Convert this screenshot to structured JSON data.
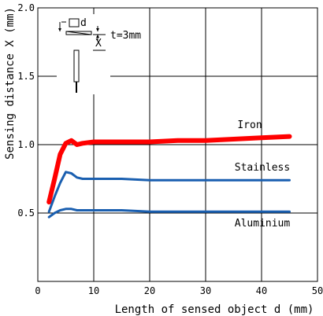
{
  "chart_data": {
    "type": "line",
    "xlabel": "Length of sensed object d (mm)",
    "ylabel": "Sensing distance X (mm)",
    "xlim": [
      0,
      50
    ],
    "ylim": [
      0,
      2.0
    ],
    "xticks": [
      "0",
      "10",
      "20",
      "30",
      "40",
      "50"
    ],
    "yticks": [
      "0.5",
      "1.0",
      "1.5",
      "2.0"
    ],
    "ytick_values": [
      0.5,
      1.0,
      1.5,
      2.0
    ],
    "grid": true,
    "series": [
      {
        "name": "Iron",
        "color": "#ff0000",
        "x": [
          2,
          3,
          4,
          5,
          6,
          7,
          8,
          10,
          15,
          20,
          25,
          30,
          35,
          40,
          45
        ],
        "y": [
          0.58,
          0.75,
          0.93,
          1.01,
          1.03,
          1.0,
          1.01,
          1.02,
          1.02,
          1.02,
          1.03,
          1.03,
          1.04,
          1.05,
          1.06
        ]
      },
      {
        "name": "Stainless",
        "color": "#1a5fb0",
        "x": [
          2,
          3,
          4,
          5,
          6,
          7,
          8,
          10,
          15,
          20,
          25,
          30,
          35,
          40,
          45
        ],
        "y": [
          0.51,
          0.62,
          0.72,
          0.8,
          0.79,
          0.76,
          0.75,
          0.75,
          0.75,
          0.74,
          0.74,
          0.74,
          0.74,
          0.74,
          0.74
        ]
      },
      {
        "name": "Aluminium",
        "color": "#1a5fb0",
        "x": [
          2,
          3,
          4,
          5,
          6,
          7,
          8,
          10,
          15,
          20,
          25,
          30,
          35,
          40,
          45
        ],
        "y": [
          0.47,
          0.5,
          0.52,
          0.53,
          0.53,
          0.52,
          0.52,
          0.52,
          0.52,
          0.51,
          0.51,
          0.51,
          0.51,
          0.51,
          0.51
        ]
      }
    ]
  },
  "inset": {
    "d_label": "d",
    "t_label": "t=3mm",
    "x_label": "X"
  }
}
